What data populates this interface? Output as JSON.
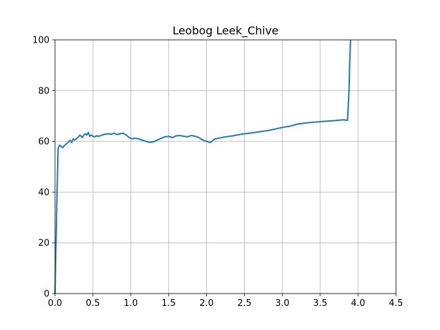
{
  "chart_data": {
    "type": "line",
    "title": "Leobog Leek_Chive",
    "xlabel": "",
    "ylabel": "",
    "xlim": [
      0,
      4.5
    ],
    "ylim": [
      0,
      100
    ],
    "grid": true,
    "x_ticks": [
      0.0,
      0.5,
      1.0,
      1.5,
      2.0,
      2.5,
      3.0,
      3.5,
      4.0,
      4.5
    ],
    "x_tick_labels": [
      "0.0",
      "0.5",
      "1.0",
      "1.5",
      "2.0",
      "2.5",
      "3.0",
      "3.5",
      "4.0",
      "4.5"
    ],
    "y_ticks": [
      0,
      20,
      40,
      60,
      80,
      100
    ],
    "y_tick_labels": [
      "0",
      "20",
      "40",
      "60",
      "80",
      "100"
    ],
    "series": [
      {
        "color": "#1f77b4",
        "x": [
          0.0,
          0.02,
          0.04,
          0.06,
          0.08,
          0.1,
          0.13,
          0.15,
          0.17,
          0.2,
          0.22,
          0.24,
          0.26,
          0.28,
          0.3,
          0.33,
          0.36,
          0.38,
          0.4,
          0.42,
          0.44,
          0.46,
          0.48,
          0.5,
          0.52,
          0.55,
          0.58,
          0.62,
          0.66,
          0.7,
          0.74,
          0.78,
          0.82,
          0.86,
          0.9,
          0.94,
          0.98,
          1.02,
          1.06,
          1.1,
          1.15,
          1.2,
          1.25,
          1.3,
          1.35,
          1.4,
          1.45,
          1.5,
          1.55,
          1.6,
          1.65,
          1.7,
          1.75,
          1.8,
          1.85,
          1.9,
          1.95,
          2.0,
          2.05,
          2.1,
          2.15,
          2.2,
          2.25,
          2.3,
          2.35,
          2.4,
          2.5,
          2.6,
          2.7,
          2.8,
          2.9,
          3.0,
          3.1,
          3.2,
          3.3,
          3.4,
          3.5,
          3.6,
          3.7,
          3.8,
          3.86,
          3.88,
          3.89,
          3.9
        ],
        "y": [
          0,
          30,
          57,
          58.5,
          58,
          57.5,
          58.5,
          59,
          59.5,
          60.5,
          59.5,
          61,
          60.5,
          61,
          61.5,
          62.5,
          61.5,
          62.5,
          63,
          62.5,
          63.5,
          62,
          62.5,
          62,
          61.8,
          62.2,
          62,
          62.5,
          62.8,
          63,
          62.8,
          63.2,
          62.7,
          63,
          63.2,
          62.5,
          61.5,
          61,
          61.2,
          61,
          60.5,
          60,
          59.6,
          59.8,
          60.5,
          61.2,
          61.8,
          62,
          61.5,
          62.2,
          62.3,
          62,
          61.8,
          62.3,
          62,
          61.5,
          60.5,
          60,
          59.5,
          60.8,
          61.2,
          61.5,
          61.8,
          62,
          62.2,
          62.5,
          63,
          63.3,
          63.8,
          64.2,
          64.8,
          65.5,
          66,
          66.8,
          67.2,
          67.5,
          67.8,
          68,
          68.2,
          68.5,
          68.3,
          80,
          92,
          100
        ]
      }
    ]
  }
}
